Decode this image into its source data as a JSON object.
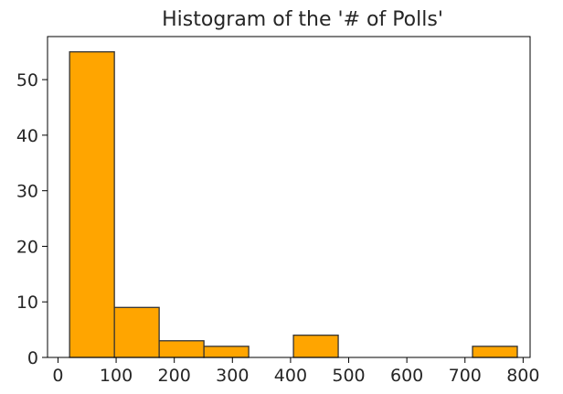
{
  "chart_data": {
    "type": "bar",
    "title": "Histogram of the '# of Polls'",
    "xlabel": "",
    "ylabel": "",
    "xlim": [
      -18,
      812
    ],
    "ylim": [
      0,
      57.75
    ],
    "xticks": [
      0,
      100,
      200,
      300,
      400,
      500,
      600,
      700,
      800
    ],
    "yticks": [
      0,
      10,
      20,
      30,
      40,
      50
    ],
    "bins": [
      {
        "x0": 20,
        "x1": 97,
        "count": 55
      },
      {
        "x0": 97,
        "x1": 174,
        "count": 9
      },
      {
        "x0": 174,
        "x1": 251,
        "count": 3
      },
      {
        "x0": 251,
        "x1": 328,
        "count": 2
      },
      {
        "x0": 328,
        "x1": 405,
        "count": 0
      },
      {
        "x0": 405,
        "x1": 482,
        "count": 4
      },
      {
        "x0": 482,
        "x1": 559,
        "count": 0
      },
      {
        "x0": 559,
        "x1": 636,
        "count": 0
      },
      {
        "x0": 636,
        "x1": 713,
        "count": 0
      },
      {
        "x0": 713,
        "x1": 790,
        "count": 2
      }
    ],
    "bar_color": "#ffa500",
    "edge_color": "#333333",
    "grid": false,
    "legend": "none"
  }
}
